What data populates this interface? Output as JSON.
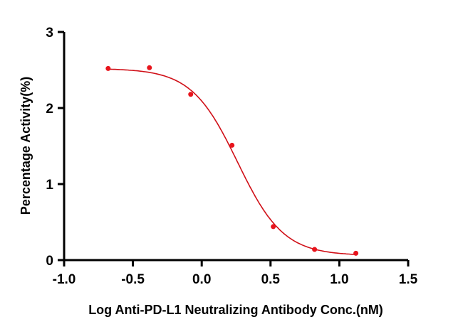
{
  "chart_data": {
    "type": "scatter",
    "title": "",
    "xlabel": "Log Anti-PD-L1 Neutralizing Antibody Conc.(nM)",
    "ylabel": "Percentage Activity(%)",
    "xlim": [
      -1.0,
      1.5
    ],
    "ylim": [
      0,
      3
    ],
    "xticks": [
      "-1.0",
      "-0.5",
      "0.0",
      "0.5",
      "1.0",
      "1.5"
    ],
    "yticks": [
      "0",
      "1",
      "2",
      "3"
    ],
    "grid": false,
    "series": [
      {
        "name": "data",
        "color": "#e8141c",
        "x": [
          -0.68,
          -0.38,
          -0.08,
          0.22,
          0.52,
          0.82,
          1.12
        ],
        "y": [
          2.52,
          2.53,
          2.18,
          1.51,
          0.44,
          0.14,
          0.09
        ]
      }
    ],
    "fit": {
      "model": "4PL",
      "color": "#d01018",
      "top": 2.52,
      "bottom": 0.06,
      "log_ic50": 0.26,
      "hill": 2.6
    }
  }
}
